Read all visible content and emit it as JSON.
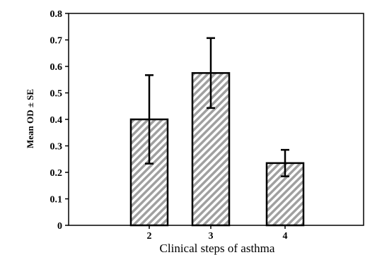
{
  "chart_data": {
    "type": "bar",
    "categories": [
      "2",
      "3",
      "4"
    ],
    "values": [
      0.4,
      0.575,
      0.235
    ],
    "errors": [
      0.167,
      0.132,
      0.05
    ],
    "xlabel": "Clinical steps of asthma",
    "ylabel": "Mean OD ± SE",
    "ylim": [
      0,
      0.8
    ],
    "yticks": [
      "0",
      "0.1",
      "0.2",
      "0.3",
      "0.4",
      "0.5",
      "0.6",
      "0.7",
      "0.8"
    ],
    "grid": false,
    "bar_fill": "diagonal-hatch",
    "hatch_color": "#a0a0a0",
    "bar_edge_color": "#000000"
  }
}
